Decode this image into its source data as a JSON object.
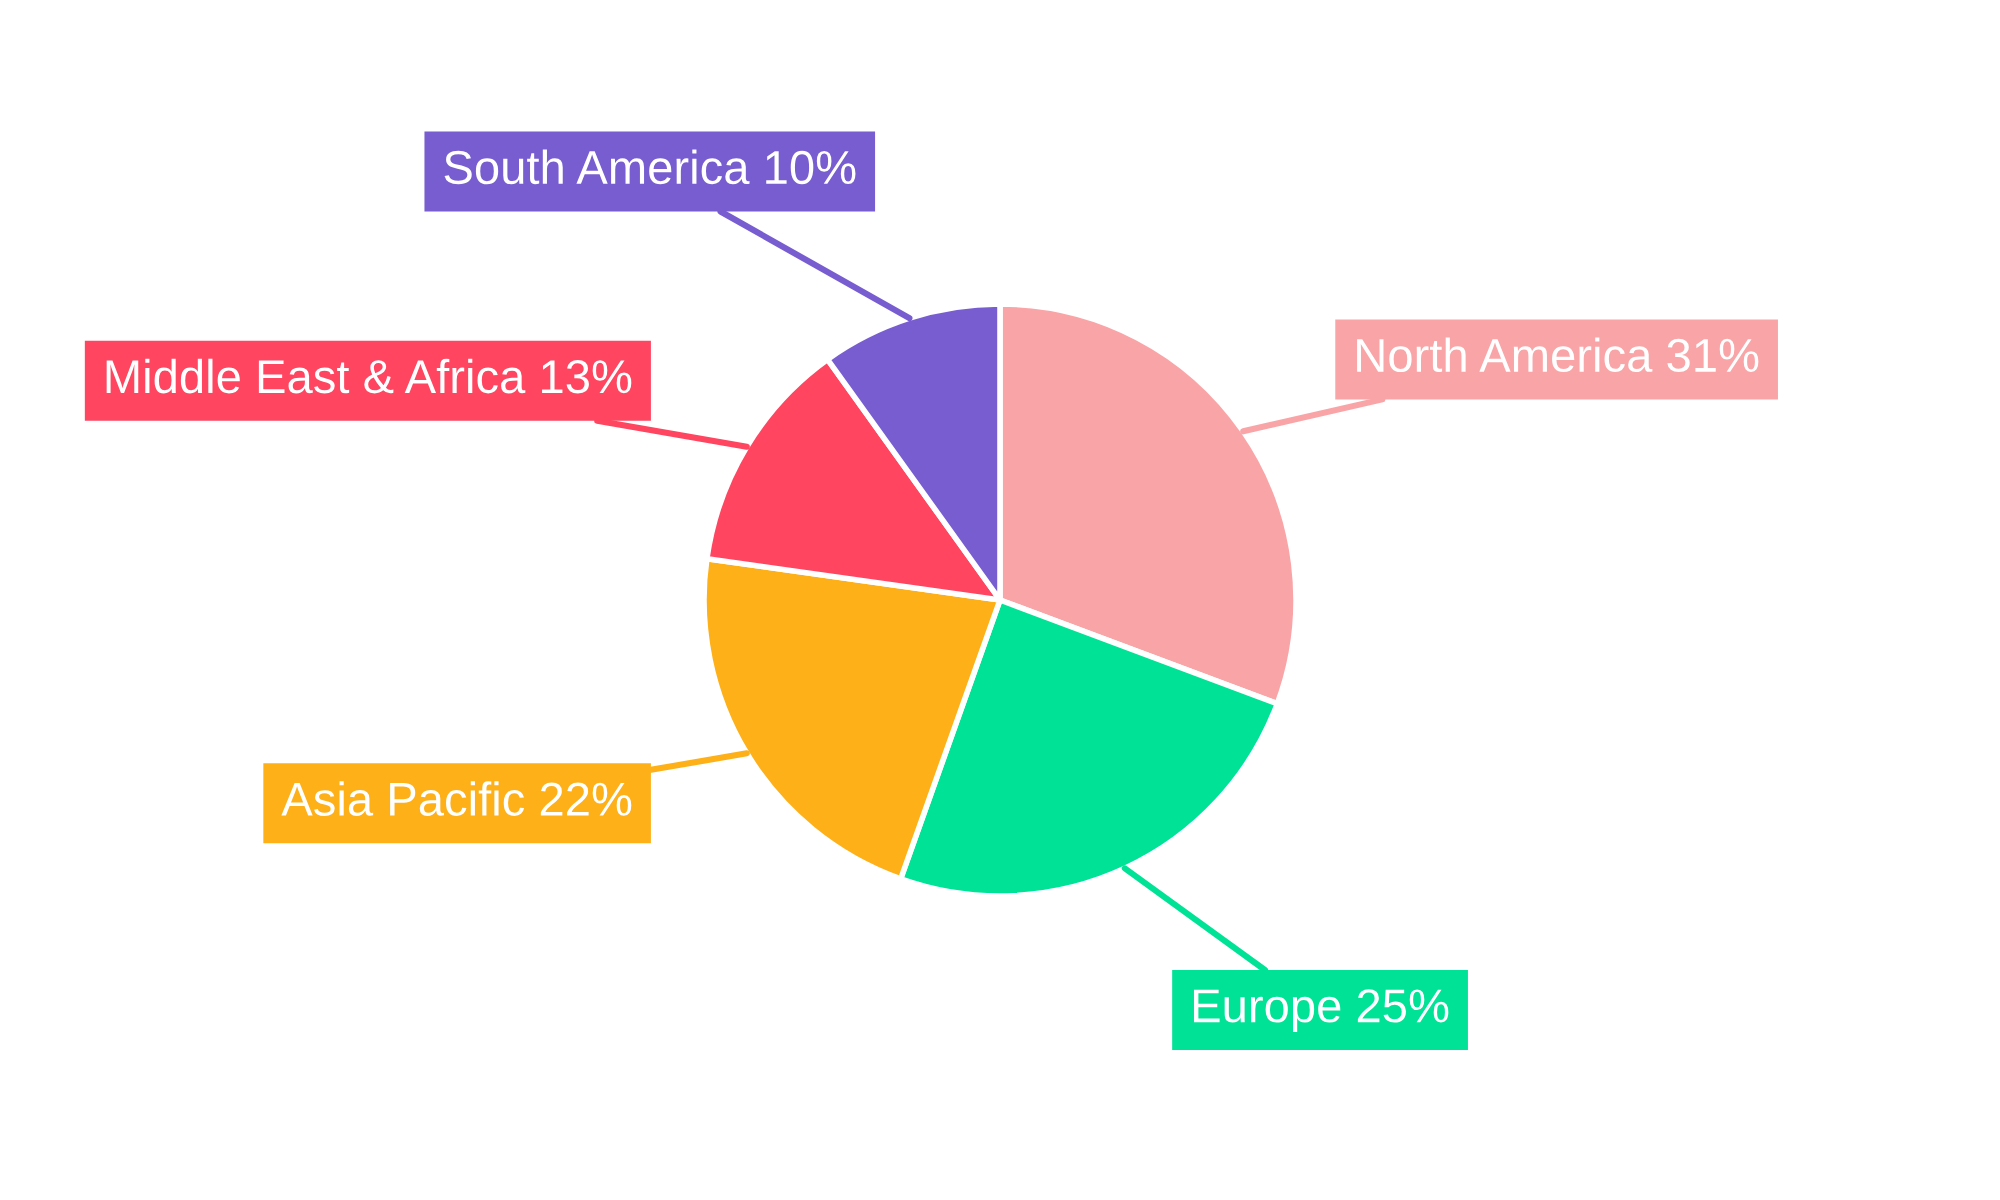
{
  "chart_data": {
    "type": "pie",
    "categories": [
      "North America",
      "Europe",
      "Asia Pacific",
      "Middle East & Africa",
      "South America"
    ],
    "values": [
      31,
      25,
      22,
      13,
      10
    ],
    "colors": [
      "#f9a5a7",
      "#00e396",
      "#feb019",
      "#ff4560",
      "#775dd0"
    ],
    "value_labels": [
      "31%",
      "25%",
      "22%",
      "13%",
      "10%"
    ]
  }
}
